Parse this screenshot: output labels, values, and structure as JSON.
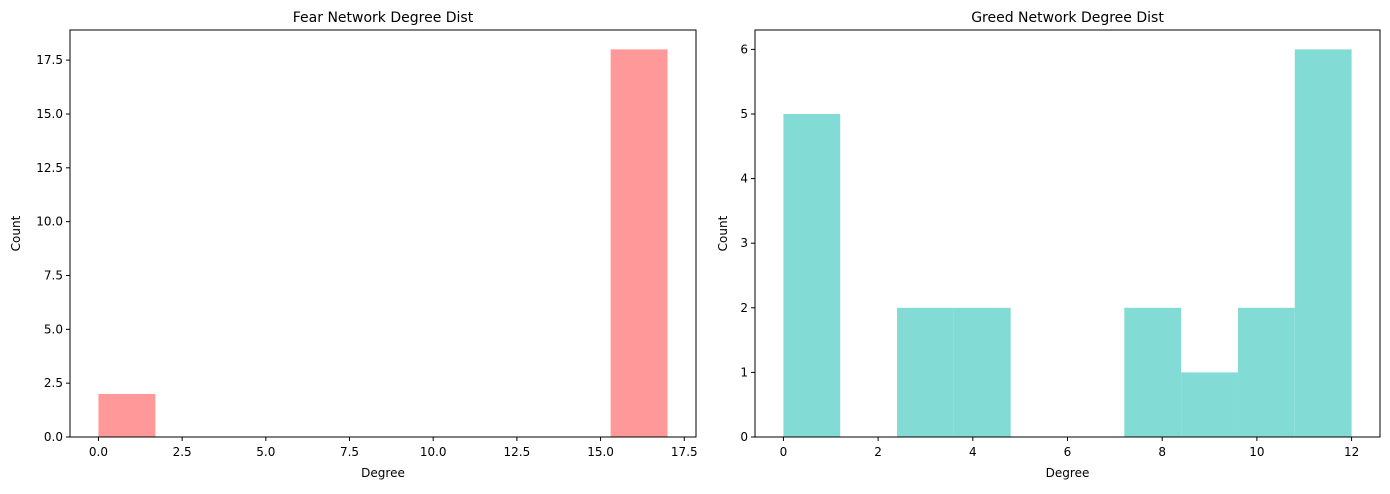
{
  "chart_data": [
    {
      "type": "bar",
      "title": "Fear Network Degree Dist",
      "xlabel": "Degree",
      "ylabel": "Count",
      "bin_edges": [
        0,
        1.7,
        3.4,
        5.1,
        6.8,
        8.5,
        10.2,
        11.9,
        13.6,
        15.3,
        17
      ],
      "values": [
        2,
        0,
        0,
        0,
        0,
        0,
        0,
        0,
        0,
        18
      ],
      "xlim": [
        -0.85,
        17.85
      ],
      "ylim": [
        0,
        18.9
      ],
      "xticks": [
        0,
        2.5,
        5,
        7.5,
        10,
        12.5,
        15,
        17.5
      ],
      "xtick_labels": [
        "0.0",
        "2.5",
        "5.0",
        "7.5",
        "10.0",
        "12.5",
        "15.0",
        "17.5"
      ],
      "yticks": [
        0,
        2.5,
        5,
        7.5,
        10,
        12.5,
        15,
        17.5
      ],
      "ytick_labels": [
        "0.0",
        "2.5",
        "5.0",
        "7.5",
        "10.0",
        "12.5",
        "15.0",
        "17.5"
      ],
      "color": "#ff9898",
      "grid": false
    },
    {
      "type": "bar",
      "title": "Greed Network Degree Dist",
      "xlabel": "Degree",
      "ylabel": "Count",
      "bin_edges": [
        0,
        1.2,
        2.4,
        3.6,
        4.8,
        6,
        7.2,
        8.4,
        9.6,
        10.8,
        12
      ],
      "values": [
        5,
        0,
        2,
        2,
        0,
        0,
        2,
        1,
        2,
        6
      ],
      "xlim": [
        -0.6,
        12.6
      ],
      "ylim": [
        0,
        6.3
      ],
      "xticks": [
        0,
        2,
        4,
        6,
        8,
        10,
        12
      ],
      "xtick_labels": [
        "0",
        "2",
        "4",
        "6",
        "8",
        "10",
        "12"
      ],
      "yticks": [
        0,
        1,
        2,
        3,
        4,
        5,
        6
      ],
      "ytick_labels": [
        "0",
        "1",
        "2",
        "3",
        "4",
        "5",
        "6"
      ],
      "color": "#83dbd5",
      "grid": false
    }
  ]
}
